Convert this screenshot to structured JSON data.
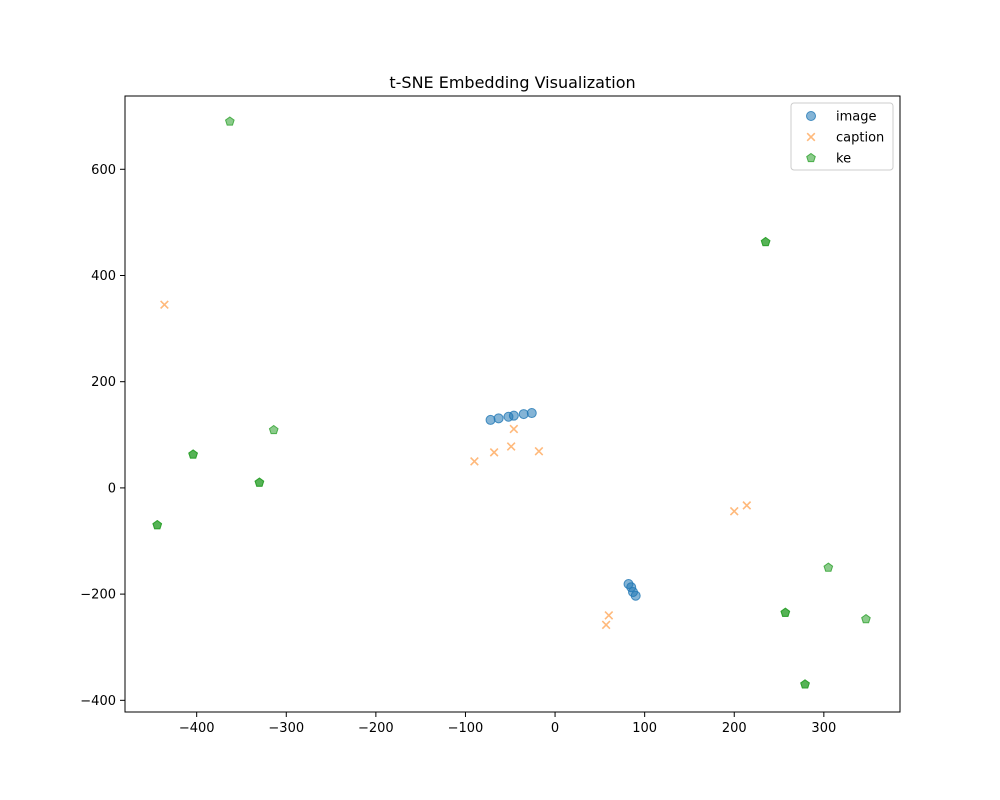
{
  "chart_data": {
    "type": "scatter",
    "title": "t-SNE Embedding Visualization",
    "xlabel": "",
    "ylabel": "",
    "xlim": [
      -480,
      385
    ],
    "ylim": [
      -422,
      738
    ],
    "xticks": [
      -400,
      -300,
      -200,
      -100,
      0,
      100,
      200,
      300
    ],
    "yticks": [
      -400,
      -200,
      0,
      200,
      400,
      600
    ],
    "grid": false,
    "legend_position": "top-right",
    "series": [
      {
        "name": "image",
        "marker": "circle",
        "color": "#1f77b4",
        "points": [
          [
            -72,
            128
          ],
          [
            -63,
            131
          ],
          [
            -52,
            134
          ],
          [
            -46,
            136
          ],
          [
            -35,
            139
          ],
          [
            -26,
            141
          ],
          [
            82,
            -181
          ],
          [
            85,
            -187
          ],
          [
            87,
            -196
          ],
          [
            90,
            -203
          ]
        ]
      },
      {
        "name": "caption",
        "marker": "x",
        "color": "#ff7f0e",
        "points": [
          [
            -436,
            345
          ],
          [
            -46,
            111
          ],
          [
            -49,
            78
          ],
          [
            -68,
            67
          ],
          [
            -90,
            50
          ],
          [
            -18,
            69
          ],
          [
            200,
            -44
          ],
          [
            214,
            -33
          ],
          [
            60,
            -240
          ],
          [
            57,
            -258
          ]
        ]
      },
      {
        "name": "ke",
        "marker": "pentagon",
        "color": "#2ca02c",
        "points": [
          [
            -363,
            690
          ],
          [
            -314,
            109
          ],
          [
            -404,
            63
          ],
          [
            -330,
            10
          ],
          [
            -444,
            -70
          ],
          [
            235,
            463
          ],
          [
            305,
            -150
          ],
          [
            347,
            -247
          ],
          [
            257,
            -235
          ],
          [
            279,
            -370
          ],
          [
            -404,
            63
          ],
          [
            -330,
            10
          ],
          [
            -444,
            -70
          ],
          [
            235,
            463
          ],
          [
            257,
            -235
          ],
          [
            279,
            -370
          ]
        ]
      }
    ]
  }
}
